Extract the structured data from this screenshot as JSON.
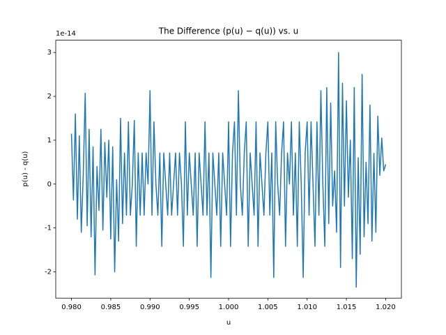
{
  "chart_data": {
    "type": "line",
    "title": "The Difference (p(u) − q(u)) vs. u",
    "xlabel": "u",
    "ylabel": "p(u) - q(u)",
    "y_offset_label": "1e-14",
    "x": [
      0.98,
      0.98025,
      0.9805,
      0.98075,
      0.981,
      0.98125,
      0.9815,
      0.98175,
      0.982,
      0.98225,
      0.9825,
      0.98275,
      0.983,
      0.98325,
      0.9835,
      0.98375,
      0.984,
      0.98425,
      0.9845,
      0.98475,
      0.985,
      0.98525,
      0.9855,
      0.98575,
      0.986,
      0.98625,
      0.9865,
      0.98675,
      0.987,
      0.98725,
      0.9875,
      0.98775,
      0.988,
      0.98825,
      0.9885,
      0.98875,
      0.989,
      0.98925,
      0.9895,
      0.98975,
      0.99,
      0.99025,
      0.9905,
      0.99075,
      0.991,
      0.99125,
      0.9915,
      0.99175,
      0.992,
      0.99225,
      0.9925,
      0.99275,
      0.993,
      0.99325,
      0.9935,
      0.99375,
      0.994,
      0.99425,
      0.9945,
      0.99475,
      0.995,
      0.99525,
      0.9955,
      0.99575,
      0.996,
      0.99625,
      0.9965,
      0.99675,
      0.997,
      0.99725,
      0.9975,
      0.99775,
      0.998,
      0.99825,
      0.9985,
      0.99875,
      0.999,
      0.99925,
      0.9995,
      0.99975,
      1.0,
      1.00025,
      1.0005,
      1.00075,
      1.001,
      1.00125,
      1.0015,
      1.00175,
      1.002,
      1.00225,
      1.0025,
      1.00275,
      1.003,
      1.00325,
      1.0035,
      1.00375,
      1.004,
      1.00425,
      1.0045,
      1.00475,
      1.005,
      1.00525,
      1.0055,
      1.00575,
      1.006,
      1.00625,
      1.0065,
      1.00675,
      1.007,
      1.00725,
      1.0075,
      1.00775,
      1.008,
      1.00825,
      1.0085,
      1.00875,
      1.009,
      1.00925,
      1.0095,
      1.00975,
      1.01,
      1.01025,
      1.0105,
      1.01075,
      1.011,
      1.01125,
      1.0115,
      1.01175,
      1.012,
      1.01225,
      1.0125,
      1.01275,
      1.013,
      1.01325,
      1.0135,
      1.01375,
      1.014,
      1.01425,
      1.0145,
      1.01475,
      1.015,
      1.01525,
      1.0155,
      1.01575,
      1.016,
      1.01625,
      1.0165,
      1.01675,
      1.017,
      1.01725,
      1.0175,
      1.01775,
      1.018,
      1.01825,
      1.0185,
      1.01875,
      1.019,
      1.01925,
      1.0195,
      1.01975,
      1.02
    ],
    "series": [
      {
        "color": "#1f77b4",
        "values": [
          1.15,
          -0.36,
          1.6,
          -0.8,
          1.1,
          -1.1,
          0.2,
          2.07,
          -0.95,
          1.25,
          -1.2,
          0.85,
          -2.07,
          0.4,
          -0.6,
          1.25,
          -1.05,
          0.95,
          -0.3,
          1.0,
          -1.25,
          0.85,
          -2.0,
          0.1,
          -1.3,
          1.5,
          -0.9,
          0.71,
          -0.71,
          1.42,
          -0.71,
          0,
          1.45,
          -1.42,
          0.71,
          -0.71,
          0.71,
          -0.71,
          0.71,
          0,
          2.13,
          -0.71,
          1.42,
          0,
          -0.71,
          0.71,
          -1.42,
          0.71,
          0,
          -0.71,
          0.71,
          -0.71,
          0,
          0.71,
          -0.71,
          0.71,
          0,
          -1.42,
          1.42,
          -0.71,
          0.71,
          0,
          -0.71,
          0.71,
          -1.42,
          0.71,
          0,
          -0.71,
          1.42,
          -0.71,
          0.71,
          -2.13,
          0.71,
          0,
          -0.71,
          0.71,
          -1.42,
          0.71,
          0,
          -0.71,
          1.42,
          -1.42,
          0.71,
          1.42,
          -0.71,
          2.13,
          0,
          -0.71,
          0.71,
          1.42,
          -1.42,
          0.71,
          0,
          -0.71,
          1.42,
          -1.42,
          0.71,
          0,
          -0.71,
          0.71,
          1.42,
          -0.71,
          0.71,
          -2.13,
          1.42,
          0,
          -0.71,
          0.71,
          1.42,
          -1.42,
          0.71,
          0,
          1.42,
          -0.71,
          0.71,
          -1.42,
          1.42,
          0,
          -2.13,
          0.71,
          1.42,
          -0.71,
          1.42,
          0,
          -1.42,
          1.42,
          -0.71,
          2.13,
          0,
          -1.42,
          2.2,
          -0.9,
          1.85,
          -0.5,
          0.3,
          -1.1,
          3.0,
          -1.9,
          2.3,
          -0.5,
          1.9,
          -0.3,
          1.0,
          -1.7,
          2.2,
          -2.35,
          0.6,
          -1.6,
          2.5,
          -1.2,
          0.5,
          -0.9,
          1.8,
          -1.3,
          0.7,
          -1.1,
          1.55,
          0.2,
          1.05,
          0.3,
          0.45
        ]
      }
    ],
    "xlim": [
      0.978,
      1.022
    ],
    "ylim": [
      -2.6,
      3.28
    ],
    "xticks": [
      {
        "value": 0.98,
        "label": "0.980"
      },
      {
        "value": 0.985,
        "label": "0.985"
      },
      {
        "value": 0.99,
        "label": "0.990"
      },
      {
        "value": 0.995,
        "label": "0.995"
      },
      {
        "value": 1.0,
        "label": "1.000"
      },
      {
        "value": 1.005,
        "label": "1.005"
      },
      {
        "value": 1.01,
        "label": "1.010"
      },
      {
        "value": 1.015,
        "label": "1.015"
      },
      {
        "value": 1.02,
        "label": "1.020"
      }
    ],
    "yticks": [
      -2,
      -1,
      0,
      1,
      2,
      3
    ],
    "grid": false
  }
}
